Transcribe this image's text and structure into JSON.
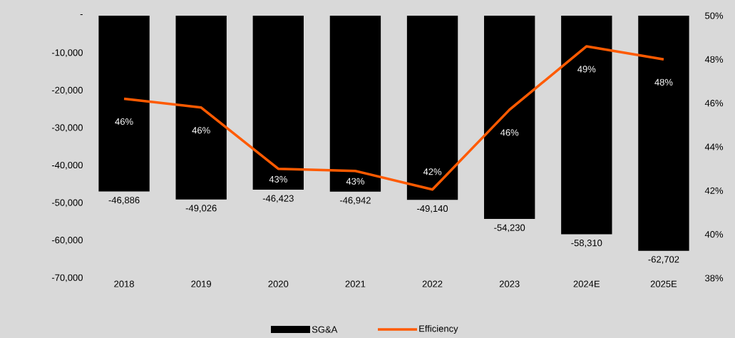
{
  "chart_data": {
    "type": "bar",
    "categories": [
      "2018",
      "2019",
      "2020",
      "2021",
      "2022",
      "2023",
      "2024E",
      "2025E"
    ],
    "series": [
      {
        "name": "SG&A",
        "color": "#000000",
        "values": [
          -46886,
          -49026,
          -46423,
          -46942,
          -49140,
          -54230,
          -58310,
          -62702
        ],
        "value_labels": [
          "-46,886",
          "-49,026",
          "-46,423",
          "-46,942",
          "-49,140",
          "-54,230",
          "-58,310",
          "-62,702"
        ]
      },
      {
        "name": "Efficiency",
        "type": "line",
        "axis": "y2",
        "color": "#ff5a00",
        "values": [
          46.2,
          45.8,
          43.0,
          42.9,
          42.05,
          45.7,
          48.6,
          48.0
        ],
        "value_labels": [
          "46%",
          "46%",
          "43%",
          "43%",
          "42%",
          "46%",
          "49%",
          "48%"
        ]
      }
    ],
    "ylim": [
      -70000,
      0
    ],
    "yticks": [
      {
        "value": -70000,
        "label": "-70,000"
      },
      {
        "value": -60000,
        "label": "-60,000"
      },
      {
        "value": -50000,
        "label": "-50,000"
      },
      {
        "value": -40000,
        "label": "-40,000"
      },
      {
        "value": -30000,
        "label": "-30,000"
      },
      {
        "value": -20000,
        "label": "-20,000"
      },
      {
        "value": -10000,
        "label": "-10,000"
      },
      {
        "value": 0,
        "label": "-"
      }
    ],
    "y2lim": [
      38,
      50
    ],
    "y2ticks": [
      {
        "value": 38,
        "label": "38%"
      },
      {
        "value": 40,
        "label": "40%"
      },
      {
        "value": 42,
        "label": "42%"
      },
      {
        "value": 44,
        "label": "44%"
      },
      {
        "value": 46,
        "label": "46%"
      },
      {
        "value": 48,
        "label": "48%"
      },
      {
        "value": 50,
        "label": "50%"
      }
    ],
    "legend": "bottom"
  }
}
